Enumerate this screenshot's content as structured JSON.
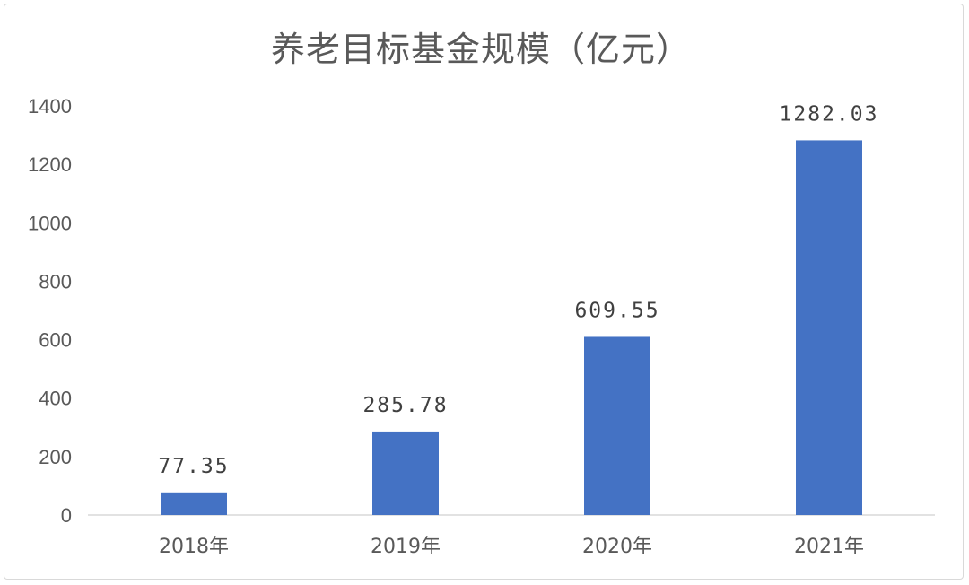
{
  "chart_data": {
    "type": "bar",
    "title": "养老目标基金规模（亿元）",
    "categories": [
      "2018年",
      "2019年",
      "2020年",
      "2021年"
    ],
    "values": [
      77.35,
      285.78,
      609.55,
      1282.03
    ],
    "data_labels": [
      "77.35",
      "285.78",
      "609.55",
      "1282.03"
    ],
    "yticks": [
      0,
      200,
      400,
      600,
      800,
      1000,
      1200,
      1400
    ],
    "ylim": [
      0,
      1400
    ],
    "bar_color": "#4472c4",
    "grid": false,
    "legend": "none"
  }
}
